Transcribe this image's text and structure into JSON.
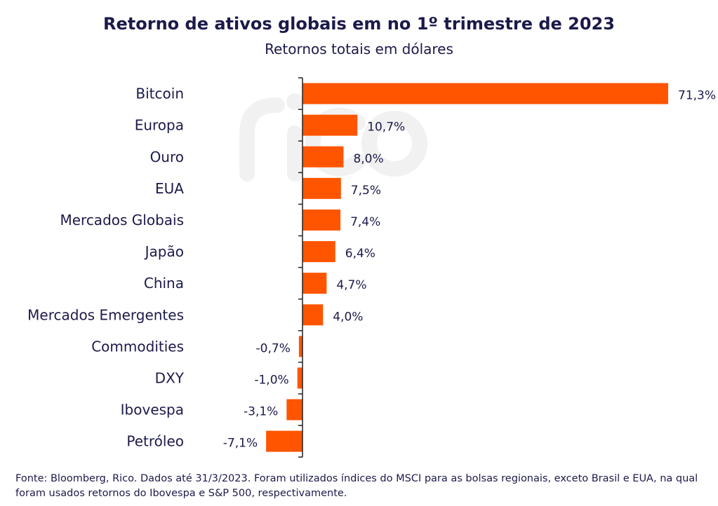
{
  "chart_data": {
    "type": "bar",
    "orientation": "horizontal",
    "title": "Retorno de ativos globais em no 1º trimestre de 2023",
    "subtitle": "Retornos totais em dólares",
    "categories": [
      "Bitcoin",
      "Europa",
      "Ouro",
      "EUA",
      "Mercados Globais",
      "Japão",
      "China",
      "Mercados Emergentes",
      "Commodities",
      "DXY",
      "Ibovespa",
      "Petróleo"
    ],
    "values": [
      71.3,
      10.7,
      8.0,
      7.5,
      7.4,
      6.4,
      4.7,
      4.0,
      -0.7,
      -1.0,
      -3.1,
      -7.1
    ],
    "data_labels": [
      "71,3%",
      "10,7%",
      "8,0%",
      "7,5%",
      "7,4%",
      "6,4%",
      "4,7%",
      "4,0%",
      "-0,7%",
      "-1,0%",
      "-3,1%",
      "-7,1%"
    ],
    "unit": "%",
    "xlabel": "",
    "ylabel": "",
    "grid": false,
    "colors": {
      "bar": "#ff5500",
      "text": "#1b1a4a"
    }
  },
  "watermark": "rico",
  "footer": "Fonte: Bloomberg, Rico. Dados até 31/3/2023. Foram utilizados índices do MSCI para as bolsas regionais, exceto Brasil e EUA, na qual foram usados retornos do Ibovespa e S&P 500, respectivamente."
}
